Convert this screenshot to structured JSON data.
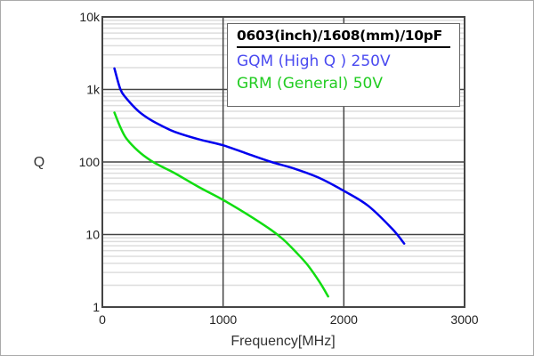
{
  "chart_data": {
    "type": "line",
    "title": "0603(inch)/1608(mm)/10pF",
    "xlabel": "Frequency[MHz]",
    "ylabel": "Q",
    "xlim": [
      0,
      3000
    ],
    "ylim": [
      1,
      10000
    ],
    "yscale": "log",
    "grid": true,
    "legend_placement": "top-right",
    "x_ticks": [
      "0",
      "1000",
      "2000",
      "3000"
    ],
    "y_ticks": [
      "1",
      "10",
      "100",
      "1k",
      "10k"
    ],
    "series": [
      {
        "name": "GQM (High Q ) 250V",
        "color": "#0000ee",
        "legend_color": "#4a4af0",
        "x": [
          100,
          150,
          200,
          300,
          400,
          500,
          600,
          800,
          1000,
          1200,
          1400,
          1600,
          1800,
          2000,
          2200,
          2400,
          2500
        ],
        "y": [
          1950,
          1000,
          750,
          500,
          380,
          310,
          260,
          205,
          170,
          130,
          100,
          80,
          60,
          40,
          25,
          12,
          7.5
        ]
      },
      {
        "name": "GRM (General) 50V",
        "color": "#11dd11",
        "legend_color": "#22cc22",
        "x": [
          100,
          150,
          200,
          300,
          400,
          500,
          600,
          800,
          1000,
          1200,
          1400,
          1500,
          1600,
          1700,
          1800,
          1870
        ],
        "y": [
          480,
          300,
          210,
          140,
          105,
          85,
          70,
          45,
          30,
          19,
          11.5,
          8.5,
          5.8,
          3.8,
          2.2,
          1.4
        ]
      }
    ]
  }
}
